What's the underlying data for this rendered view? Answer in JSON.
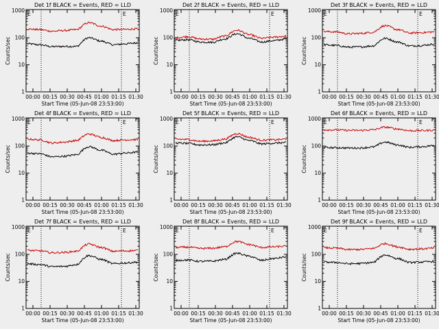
{
  "chart_data": [
    {
      "type": "line",
      "title": "Det 1f BLACK = Events, RED = LLD",
      "xlabel": "Start Time (05-Jun-08 23:53:00)",
      "ylabel": "Counts/sec",
      "x_ticks": [
        "00:00",
        "00:15",
        "00:30",
        "00:45",
        "01:00",
        "01:15",
        "01:30"
      ],
      "y_ticks": [
        "1",
        "10",
        "100",
        "1000"
      ],
      "ylim": [
        1,
        1100
      ],
      "y_scale": "log",
      "markers": [
        "E",
        "E"
      ],
      "series": [
        {
          "name": "BLACK = Events",
          "color": "#000000",
          "levels": [
            60,
            55,
            47,
            48,
            48,
            100,
            75,
            55,
            60,
            65
          ]
        },
        {
          "name": "RED = LLD",
          "color": "#cc0000",
          "levels": [
            210,
            200,
            175,
            185,
            200,
            360,
            270,
            200,
            205,
            215
          ]
        }
      ]
    },
    {
      "type": "line",
      "title": "Det 2f BLACK = Events, RED = LLD",
      "xlabel": "Start Time (05-Jun-08 23:53:00)",
      "ylabel": "Counts/sec",
      "x_ticks": [
        "00:00",
        "00:15",
        "00:30",
        "00:45",
        "01:00",
        "01:15",
        "01:30"
      ],
      "y_ticks": [
        "1",
        "10",
        "100",
        "1000"
      ],
      "ylim": [
        1,
        1100
      ],
      "y_scale": "log",
      "markers": [
        "E",
        "E"
      ],
      "series": [
        {
          "name": "BLACK = Events",
          "color": "#000000",
          "levels": [
            80,
            85,
            70,
            68,
            90,
            140,
            95,
            70,
            78,
            90
          ]
        },
        {
          "name": "RED = LLD",
          "color": "#cc0000",
          "levels": [
            100,
            110,
            90,
            88,
            115,
            190,
            130,
            95,
            105,
            115
          ]
        }
      ]
    },
    {
      "type": "line",
      "title": "Det 3f BLACK = Events, RED = LLD",
      "xlabel": "Start Time (05-Jun-08 23:53:00)",
      "ylabel": "Counts/sec",
      "x_ticks": [
        "00:00",
        "00:15",
        "00:30",
        "00:45",
        "01:00",
        "01:15",
        "01:30"
      ],
      "y_ticks": [
        "1",
        "10",
        "100",
        "1000"
      ],
      "ylim": [
        1,
        1100
      ],
      "y_scale": "log",
      "markers": [
        "E",
        "E"
      ],
      "series": [
        {
          "name": "BLACK = Events",
          "color": "#000000",
          "levels": [
            55,
            52,
            45,
            46,
            50,
            95,
            70,
            50,
            52,
            58
          ]
        },
        {
          "name": "RED = LLD",
          "color": "#cc0000",
          "levels": [
            170,
            165,
            140,
            145,
            160,
            280,
            200,
            150,
            155,
            165
          ]
        }
      ]
    },
    {
      "type": "line",
      "title": "Det 4f BLACK = Events, RED = LLD",
      "xlabel": "Start Time (05-Jun-08 23:53:00)",
      "ylabel": "Counts/sec",
      "x_ticks": [
        "00:00",
        "00:15",
        "00:30",
        "00:45",
        "01:00",
        "01:15",
        "01:30"
      ],
      "y_ticks": [
        "1",
        "10",
        "100",
        "1000"
      ],
      "ylim": [
        1,
        1100
      ],
      "y_scale": "log",
      "markers": [
        "E",
        "E"
      ],
      "series": [
        {
          "name": "BLACK = Events",
          "color": "#000000",
          "levels": [
            55,
            52,
            40,
            42,
            48,
            95,
            70,
            50,
            55,
            60
          ]
        },
        {
          "name": "RED = LLD",
          "color": "#cc0000",
          "levels": [
            180,
            170,
            130,
            140,
            160,
            280,
            210,
            160,
            170,
            175
          ]
        }
      ]
    },
    {
      "type": "line",
      "title": "Det 5f BLACK = Events, RED = LLD",
      "xlabel": "Start Time (05-Jun-08 23:53:00)",
      "ylabel": "Counts/sec",
      "x_ticks": [
        "00:00",
        "00:15",
        "00:30",
        "00:45",
        "01:00",
        "01:15",
        "01:30"
      ],
      "y_ticks": [
        "1",
        "10",
        "100",
        "1000"
      ],
      "ylim": [
        1,
        1100
      ],
      "y_scale": "log",
      "markers": [
        "E",
        "E"
      ],
      "series": [
        {
          "name": "BLACK = Events",
          "color": "#000000",
          "levels": [
            130,
            125,
            110,
            112,
            130,
            220,
            160,
            120,
            128,
            135
          ]
        },
        {
          "name": "RED = LLD",
          "color": "#cc0000",
          "levels": [
            180,
            175,
            150,
            155,
            180,
            290,
            210,
            165,
            170,
            180
          ]
        }
      ]
    },
    {
      "type": "line",
      "title": "Det 6f BLACK = Events, RED = LLD",
      "xlabel": "Start Time (05-Jun-08 23:53:00)",
      "ylabel": "Counts/sec",
      "x_ticks": [
        "00:00",
        "00:15",
        "00:30",
        "00:45",
        "01:00",
        "01:15",
        "01:30"
      ],
      "y_ticks": [
        "1",
        "10",
        "100",
        "1000"
      ],
      "ylim": [
        1,
        1100
      ],
      "y_scale": "log",
      "markers": [
        "E",
        "E"
      ],
      "series": [
        {
          "name": "BLACK = Events",
          "color": "#000000",
          "levels": [
            88,
            87,
            85,
            85,
            92,
            140,
            110,
            90,
            95,
            105
          ]
        },
        {
          "name": "RED = LLD",
          "color": "#cc0000",
          "levels": [
            400,
            395,
            380,
            380,
            400,
            500,
            430,
            370,
            375,
            385
          ]
        }
      ]
    },
    {
      "type": "line",
      "title": "Det 7f BLACK = Events, RED = LLD",
      "xlabel": "Start Time (05-Jun-08 23:53:00)",
      "ylabel": "Counts/sec",
      "x_ticks": [
        "00:00",
        "00:15",
        "00:30",
        "00:45",
        "01:00",
        "01:15",
        "01:30"
      ],
      "y_ticks": [
        "1",
        "10",
        "100",
        "1000"
      ],
      "ylim": [
        1,
        1100
      ],
      "y_scale": "log",
      "markers": [
        "E",
        "E"
      ],
      "series": [
        {
          "name": "BLACK = Events",
          "color": "#000000",
          "levels": [
            45,
            42,
            35,
            36,
            42,
            90,
            65,
            45,
            48,
            52
          ]
        },
        {
          "name": "RED = LLD",
          "color": "#cc0000",
          "levels": [
            140,
            135,
            115,
            118,
            130,
            240,
            180,
            130,
            135,
            140
          ]
        }
      ]
    },
    {
      "type": "line",
      "title": "Det 8f BLACK = Events, RED = LLD",
      "xlabel": "Start Time (05-Jun-08 23:53:00)",
      "ylabel": "Counts/sec",
      "x_ticks": [
        "00:00",
        "00:15",
        "00:30",
        "00:45",
        "01:00",
        "01:15",
        "01:30"
      ],
      "y_ticks": [
        "1",
        "10",
        "100",
        "1000"
      ],
      "ylim": [
        1,
        1100
      ],
      "y_scale": "log",
      "markers": [
        "E",
        "E"
      ],
      "series": [
        {
          "name": "BLACK = Events",
          "color": "#000000",
          "levels": [
            60,
            62,
            55,
            56,
            65,
            110,
            85,
            60,
            70,
            80
          ]
        },
        {
          "name": "RED = LLD",
          "color": "#cc0000",
          "levels": [
            180,
            185,
            165,
            168,
            190,
            300,
            230,
            180,
            190,
            200
          ]
        }
      ]
    },
    {
      "type": "line",
      "title": "Det 9f BLACK = Events, RED = LLD",
      "xlabel": "Start Time (05-Jun-08 23:53:00)",
      "ylabel": "Counts/sec",
      "x_ticks": [
        "00:00",
        "00:15",
        "00:30",
        "00:45",
        "01:00",
        "01:15",
        "01:30"
      ],
      "y_ticks": [
        "1",
        "10",
        "100",
        "1000"
      ],
      "ylim": [
        1,
        1100
      ],
      "y_scale": "log",
      "markers": [
        "E",
        "E"
      ],
      "series": [
        {
          "name": "BLACK = Events",
          "color": "#000000",
          "levels": [
            52,
            50,
            45,
            46,
            50,
            95,
            70,
            50,
            52,
            55
          ]
        },
        {
          "name": "RED = LLD",
          "color": "#cc0000",
          "levels": [
            175,
            170,
            150,
            152,
            165,
            250,
            190,
            155,
            160,
            170
          ]
        }
      ]
    }
  ]
}
